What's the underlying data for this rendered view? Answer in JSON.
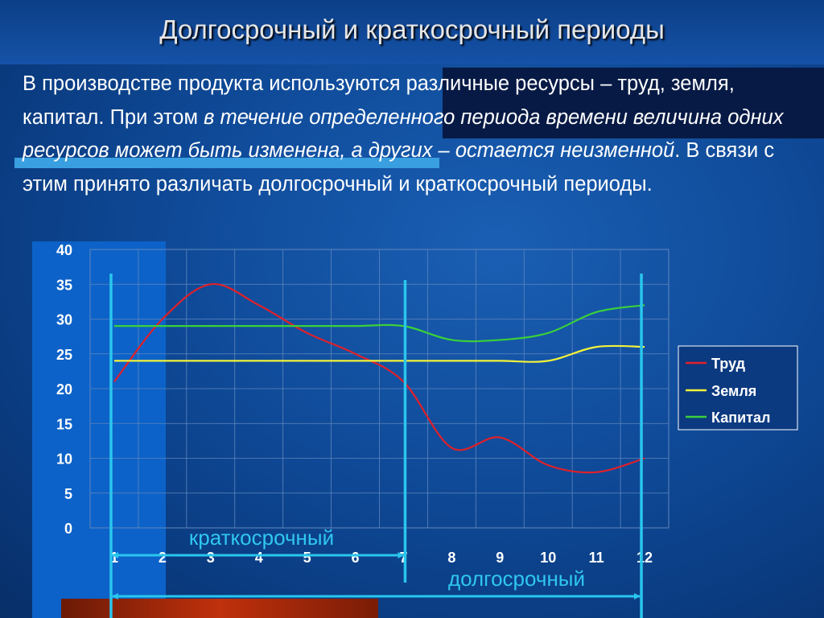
{
  "title": "Долгосрочный и краткосрочный периоды",
  "paragraph": {
    "before": "В производстве продукта используются различные ресурсы – труд, земля, капитал. При этом ",
    "italic": "в течение определенного периода времени величина одних ресурсов может быть изменена, а других – остается неизменной",
    "after": ". В связи с этим принято различать долгосрочный и краткосрочный периоды."
  },
  "annotations": {
    "short_term": "краткосрочный",
    "long_term": "долгосрочный"
  },
  "colors": {
    "labor": "#e0202a",
    "land": "#f2f23a",
    "capital": "#3ad03a",
    "marker": "#29c6ee"
  },
  "chart_data": {
    "type": "line",
    "x": [
      "1",
      "2",
      "3",
      "4",
      "5",
      "6",
      "7",
      "8",
      "9",
      "10",
      "11",
      "12"
    ],
    "series": [
      {
        "name": "Труд",
        "color": "#e0202a",
        "values": [
          21,
          30,
          35,
          32,
          28,
          25,
          21,
          11.5,
          13,
          9,
          8,
          10
        ]
      },
      {
        "name": "Земля",
        "color": "#f2f23a",
        "values": [
          24,
          24,
          24,
          24,
          24,
          24,
          24,
          24,
          24,
          24,
          26,
          26
        ]
      },
      {
        "name": "Капитал",
        "color": "#3ad03a",
        "values": [
          29,
          29,
          29,
          29,
          29,
          29,
          29,
          27,
          27,
          28,
          31,
          32
        ]
      }
    ],
    "y_ticks": [
      "0",
      "5",
      "10",
      "15",
      "20",
      "25",
      "30",
      "35",
      "40"
    ],
    "ylim": [
      0,
      40
    ],
    "grid": true,
    "legend": "right",
    "periods": [
      {
        "label": "краткосрочный",
        "from": 1,
        "to": 7
      },
      {
        "label": "долгосрочный",
        "from": 1,
        "to": 12
      }
    ]
  }
}
